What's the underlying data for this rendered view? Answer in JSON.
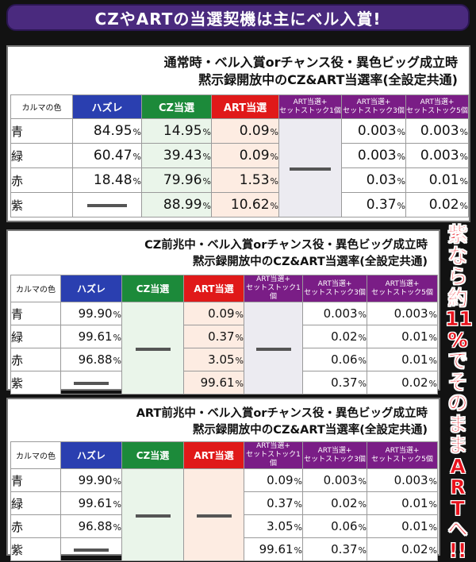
{
  "header": {
    "title": "CZやARTの当選契機は主にベル入賞!"
  },
  "side_note": "紫\nな\nら\n約\n11\n%\nで\nそ\nの\nま\nま\nA\nR\nT\nへ\n!!",
  "columns": {
    "karma": "カルマの色",
    "hazure": "ハズレ",
    "cz": "CZ当選",
    "art": "ART当選",
    "stock1": [
      "ART当選+",
      "セットストック1個"
    ],
    "stock3": [
      "ART当選+",
      "セットストック3個"
    ],
    "stock5": [
      "ART当選+",
      "セットストック5個"
    ]
  },
  "pct_unit": "%",
  "tables": [
    {
      "title_line1": "通常時・ベル入賞orチャンス役・異色ビッグ成立時",
      "title_line2": "黙示録開放中のCZ&ART当選率(全設定共通)",
      "rows": [
        {
          "color": "青",
          "hazure": "84.95",
          "cz": "14.95",
          "art": "0.09",
          "stock3": "0.003",
          "stock5": "0.003"
        },
        {
          "color": "緑",
          "hazure": "60.47",
          "cz": "39.43",
          "art": "0.09",
          "stock3": "0.003",
          "stock5": "0.003"
        },
        {
          "color": "赤",
          "hazure": "18.48",
          "cz": "79.96",
          "art": "1.53",
          "stock3": "0.03",
          "stock5": "0.01"
        },
        {
          "color": "紫",
          "hazure": "",
          "cz": "88.99",
          "art": "10.62",
          "stock3": "0.37",
          "stock5": "0.02"
        }
      ]
    },
    {
      "title_line1": "CZ前兆中・ベル入賞orチャンス役・異色ビッグ成立時",
      "title_line2": "黙示録開放中のCZ&ART当選率(全設定共通)",
      "rows": [
        {
          "color": "青",
          "hazure": "99.90",
          "art": "0.09",
          "stock3": "0.003",
          "stock5": "0.003"
        },
        {
          "color": "緑",
          "hazure": "99.61",
          "art": "0.37",
          "stock3": "0.02",
          "stock5": "0.01"
        },
        {
          "color": "赤",
          "hazure": "96.88",
          "art": "3.05",
          "stock3": "0.06",
          "stock5": "0.01"
        },
        {
          "color": "紫",
          "hazure": "",
          "art": "99.61",
          "stock3": "0.37",
          "stock5": "0.02"
        }
      ]
    },
    {
      "title_line1": "ART前兆中・ベル入賞orチャンス役・異色ビッグ成立時",
      "title_line2": "黙示録開放中のCZ&ART当選率(全設定共通)",
      "rows": [
        {
          "color": "青",
          "hazure": "99.90",
          "stock1": "0.09",
          "stock3": "0.003",
          "stock5": "0.003"
        },
        {
          "color": "緑",
          "hazure": "99.61",
          "stock1": "0.37",
          "stock3": "0.02",
          "stock5": "0.01"
        },
        {
          "color": "赤",
          "hazure": "96.88",
          "stock1": "3.05",
          "stock3": "0.06",
          "stock5": "0.01"
        },
        {
          "color": "紫",
          "hazure": "",
          "stock1": "99.61",
          "stock3": "0.37",
          "stock5": "0.02"
        }
      ]
    }
  ]
}
